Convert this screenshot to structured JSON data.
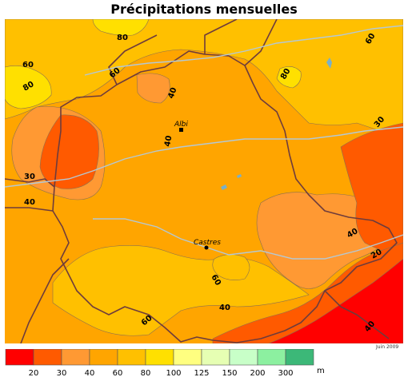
{
  "title": "Précipitations mensuelles",
  "date": "Juin 2009",
  "cities": [
    {
      "name": "Albi"
    },
    {
      "name": "Castres"
    }
  ],
  "contour_labels": [
    "80",
    "60",
    "60",
    "80",
    "40",
    "80",
    "60",
    "40",
    "30",
    "30",
    "40",
    "40",
    "20",
    "60",
    "40",
    "60",
    "40"
  ],
  "legend": {
    "unit": "millimètres",
    "ticks": [
      "20",
      "30",
      "40",
      "60",
      "80",
      "100",
      "125",
      "150",
      "200",
      "300"
    ],
    "colors": [
      "#ff0000",
      "#ff5a00",
      "#ff9933",
      "#ffa500",
      "#ffc000",
      "#ffe000",
      "#ffff80",
      "#e6ffb3",
      "#c8ffc8",
      "#8cf0a0",
      "#3cb878"
    ]
  },
  "palette": {
    "c20": "#ff0000",
    "c30": "#ff5a00",
    "c40": "#ff9933",
    "c60": "#ffa500",
    "c80": "#ffc000",
    "c100": "#ffe000",
    "border": "#6e3c3c",
    "rivers": "#b4c8d4",
    "lakes": "#7ab0c8"
  }
}
